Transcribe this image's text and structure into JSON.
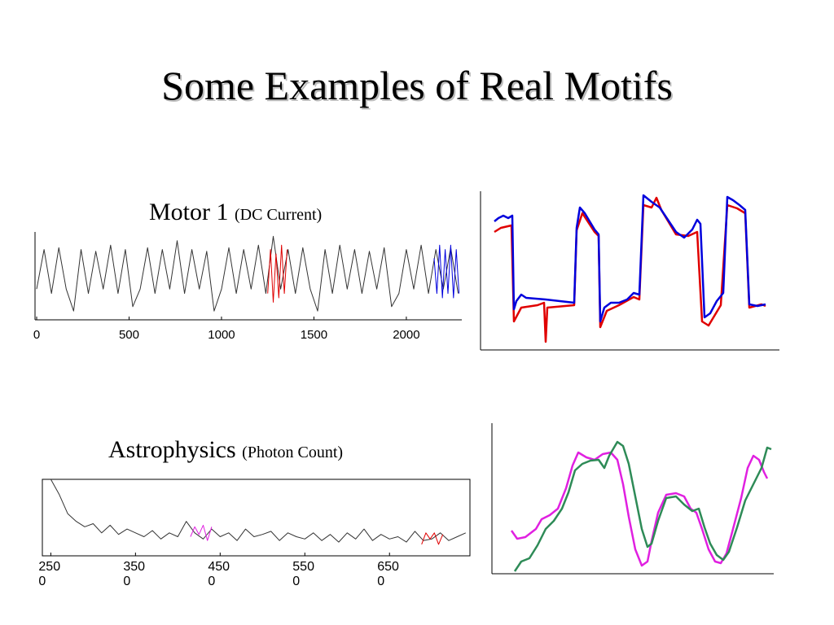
{
  "title": "Some Examples of Real Motifs",
  "chart_data": [
    {
      "type": "line",
      "title": "Motor 1",
      "subtitle": "(DC Current)",
      "xlim": [
        0,
        2300
      ],
      "ylim": [
        0,
        1
      ],
      "xticks": [
        0,
        500,
        1000,
        1500,
        2000
      ],
      "series": [
        {
          "color": "#333333",
          "x": [
            0,
            40,
            80,
            120,
            160,
            200,
            240,
            280,
            320,
            360,
            400,
            440,
            480,
            520,
            560,
            600,
            640,
            680,
            720,
            760,
            800,
            840,
            880,
            920,
            960,
            1000,
            1040,
            1080,
            1120,
            1160,
            1200,
            1240,
            1280,
            1320,
            1360,
            1400,
            1440,
            1480,
            1520,
            1560,
            1600,
            1640,
            1680,
            1720,
            1760,
            1800,
            1840,
            1880,
            1920,
            1960,
            2000,
            2040,
            2080,
            2120,
            2160,
            2200,
            2240,
            2280
          ],
          "values": [
            0.35,
            0.8,
            0.3,
            0.82,
            0.35,
            0.1,
            0.8,
            0.3,
            0.78,
            0.35,
            0.85,
            0.3,
            0.8,
            0.15,
            0.35,
            0.82,
            0.3,
            0.8,
            0.35,
            0.9,
            0.3,
            0.8,
            0.35,
            0.78,
            0.1,
            0.35,
            0.82,
            0.3,
            0.8,
            0.35,
            0.85,
            0.3,
            0.95,
            0.35,
            0.8,
            0.3,
            0.82,
            0.35,
            0.1,
            0.8,
            0.3,
            0.85,
            0.35,
            0.8,
            0.3,
            0.78,
            0.35,
            0.82,
            0.15,
            0.3,
            0.8,
            0.35,
            0.85,
            0.3,
            0.8,
            0.35,
            0.82,
            0.3
          ]
        },
        {
          "color": "#e00000",
          "x": [
            1250,
            1265,
            1280,
            1295,
            1310,
            1325,
            1340,
            1355
          ],
          "values": [
            0.3,
            0.8,
            0.2,
            0.75,
            0.25,
            0.85,
            0.3,
            0.8
          ]
        },
        {
          "color": "#0000dd",
          "x": [
            2150,
            2165,
            2180,
            2195,
            2210,
            2225,
            2240,
            2255,
            2270,
            2285
          ],
          "values": [
            0.7,
            0.3,
            0.85,
            0.25,
            0.8,
            0.3,
            0.85,
            0.25,
            0.8,
            0.3
          ]
        }
      ]
    },
    {
      "type": "line",
      "xlim": [
        0,
        367
      ],
      "ylim": [
        0,
        195
      ],
      "series": [
        {
          "color": "#e00000",
          "x": [
            17,
            25,
            38,
            41,
            50,
            70,
            78,
            80,
            82,
            115,
            118,
            125,
            140,
            145,
            147,
            155,
            170,
            188,
            195,
            200,
            210,
            216,
            222,
            240,
            255,
            266,
            272,
            280,
            295,
            303,
            315,
            325,
            330,
            345,
            350
          ],
          "values": [
            145,
            150,
            153,
            35,
            52,
            55,
            58,
            10,
            52,
            55,
            147,
            168,
            145,
            140,
            28,
            48,
            55,
            65,
            62,
            178,
            175,
            187,
            172,
            142,
            140,
            145,
            35,
            30,
            55,
            178,
            174,
            168,
            52,
            56,
            54
          ]
        },
        {
          "color": "#0000dd",
          "x": [
            17,
            22,
            28,
            34,
            39,
            41,
            44,
            50,
            56,
            80,
            115,
            118,
            122,
            128,
            140,
            145,
            147,
            152,
            160,
            170,
            180,
            188,
            195,
            200,
            210,
            220,
            230,
            240,
            250,
            260,
            266,
            270,
            275,
            282,
            290,
            298,
            303,
            310,
            318,
            325,
            330,
            340,
            350
          ],
          "values": [
            158,
            162,
            165,
            162,
            165,
            50,
            60,
            68,
            64,
            62,
            58,
            150,
            175,
            168,
            148,
            142,
            35,
            52,
            58,
            58,
            62,
            70,
            68,
            190,
            182,
            175,
            160,
            145,
            138,
            148,
            160,
            155,
            40,
            45,
            60,
            70,
            188,
            184,
            178,
            172,
            56,
            54,
            56
          ]
        }
      ]
    },
    {
      "type": "line",
      "title": "Astrophysics",
      "subtitle": "(Photon Count)",
      "xlim": [
        2400,
        7450
      ],
      "ylim": [
        0,
        1
      ],
      "xticks": [
        2500,
        3500,
        4500,
        5500,
        6500
      ],
      "series": [
        {
          "color": "#333333",
          "x": [
            2500,
            2600,
            2700,
            2800,
            2900,
            3000,
            3100,
            3200,
            3300,
            3400,
            3500,
            3600,
            3700,
            3800,
            3900,
            4000,
            4100,
            4200,
            4300,
            4400,
            4500,
            4600,
            4700,
            4800,
            4900,
            5000,
            5100,
            5200,
            5300,
            5400,
            5500,
            5600,
            5700,
            5800,
            5900,
            6000,
            6100,
            6200,
            6300,
            6400,
            6500,
            6600,
            6700,
            6800,
            6900,
            7000,
            7100,
            7200,
            7300,
            7400
          ],
          "values": [
            1.0,
            0.8,
            0.55,
            0.45,
            0.38,
            0.42,
            0.3,
            0.4,
            0.28,
            0.35,
            0.3,
            0.25,
            0.33,
            0.22,
            0.3,
            0.25,
            0.45,
            0.3,
            0.22,
            0.35,
            0.25,
            0.3,
            0.2,
            0.35,
            0.25,
            0.28,
            0.32,
            0.2,
            0.3,
            0.25,
            0.22,
            0.3,
            0.2,
            0.28,
            0.18,
            0.3,
            0.22,
            0.35,
            0.2,
            0.28,
            0.22,
            0.25,
            0.18,
            0.32,
            0.2,
            0.22,
            0.3,
            0.2,
            0.25,
            0.3
          ]
        },
        {
          "color": "#e020e0",
          "x": [
            4150,
            4200,
            4250,
            4300,
            4350,
            4400
          ],
          "values": [
            0.25,
            0.38,
            0.28,
            0.4,
            0.2,
            0.38
          ]
        },
        {
          "color": "#e00000",
          "x": [
            6880,
            6930,
            6980,
            7030,
            7080,
            7130
          ],
          "values": [
            0.15,
            0.3,
            0.22,
            0.3,
            0.15,
            0.28
          ]
        }
      ]
    },
    {
      "type": "line",
      "xlim": [
        0,
        346
      ],
      "ylim": [
        0,
        185
      ],
      "series": [
        {
          "color": "#e020e0",
          "x": [
            24,
            31,
            41,
            54,
            61,
            71,
            81,
            91,
            99,
            106,
            116,
            126,
            136,
            146,
            154,
            161,
            168,
            176,
            184,
            191,
            196,
            204,
            214,
            226,
            236,
            244,
            251,
            258,
            266,
            274,
            281,
            288,
            296,
            306,
            314,
            321,
            328,
            334,
            338
          ],
          "values": [
            53,
            43,
            45,
            55,
            67,
            72,
            80,
            105,
            133,
            149,
            143,
            140,
            147,
            149,
            140,
            110,
            70,
            30,
            10,
            15,
            40,
            75,
            97,
            99,
            95,
            80,
            75,
            55,
            30,
            15,
            13,
            25,
            55,
            93,
            130,
            145,
            140,
            125,
            117
          ]
        },
        {
          "color": "#2e8b57",
          "x": [
            28,
            36,
            46,
            56,
            66,
            76,
            86,
            94,
            102,
            111,
            121,
            131,
            138,
            144,
            154,
            161,
            168,
            176,
            184,
            191,
            196,
            204,
            214,
            226,
            236,
            246,
            254,
            261,
            268,
            276,
            284,
            291,
            301,
            311,
            321,
            331,
            338,
            343
          ],
          "values": [
            3,
            15,
            19,
            35,
            55,
            65,
            80,
            100,
            127,
            135,
            139,
            140,
            130,
            145,
            162,
            157,
            135,
            95,
            55,
            33,
            37,
            65,
            93,
            95,
            85,
            77,
            80,
            57,
            37,
            23,
            17,
            27,
            57,
            90,
            110,
            130,
            155,
            153
          ]
        }
      ]
    }
  ]
}
